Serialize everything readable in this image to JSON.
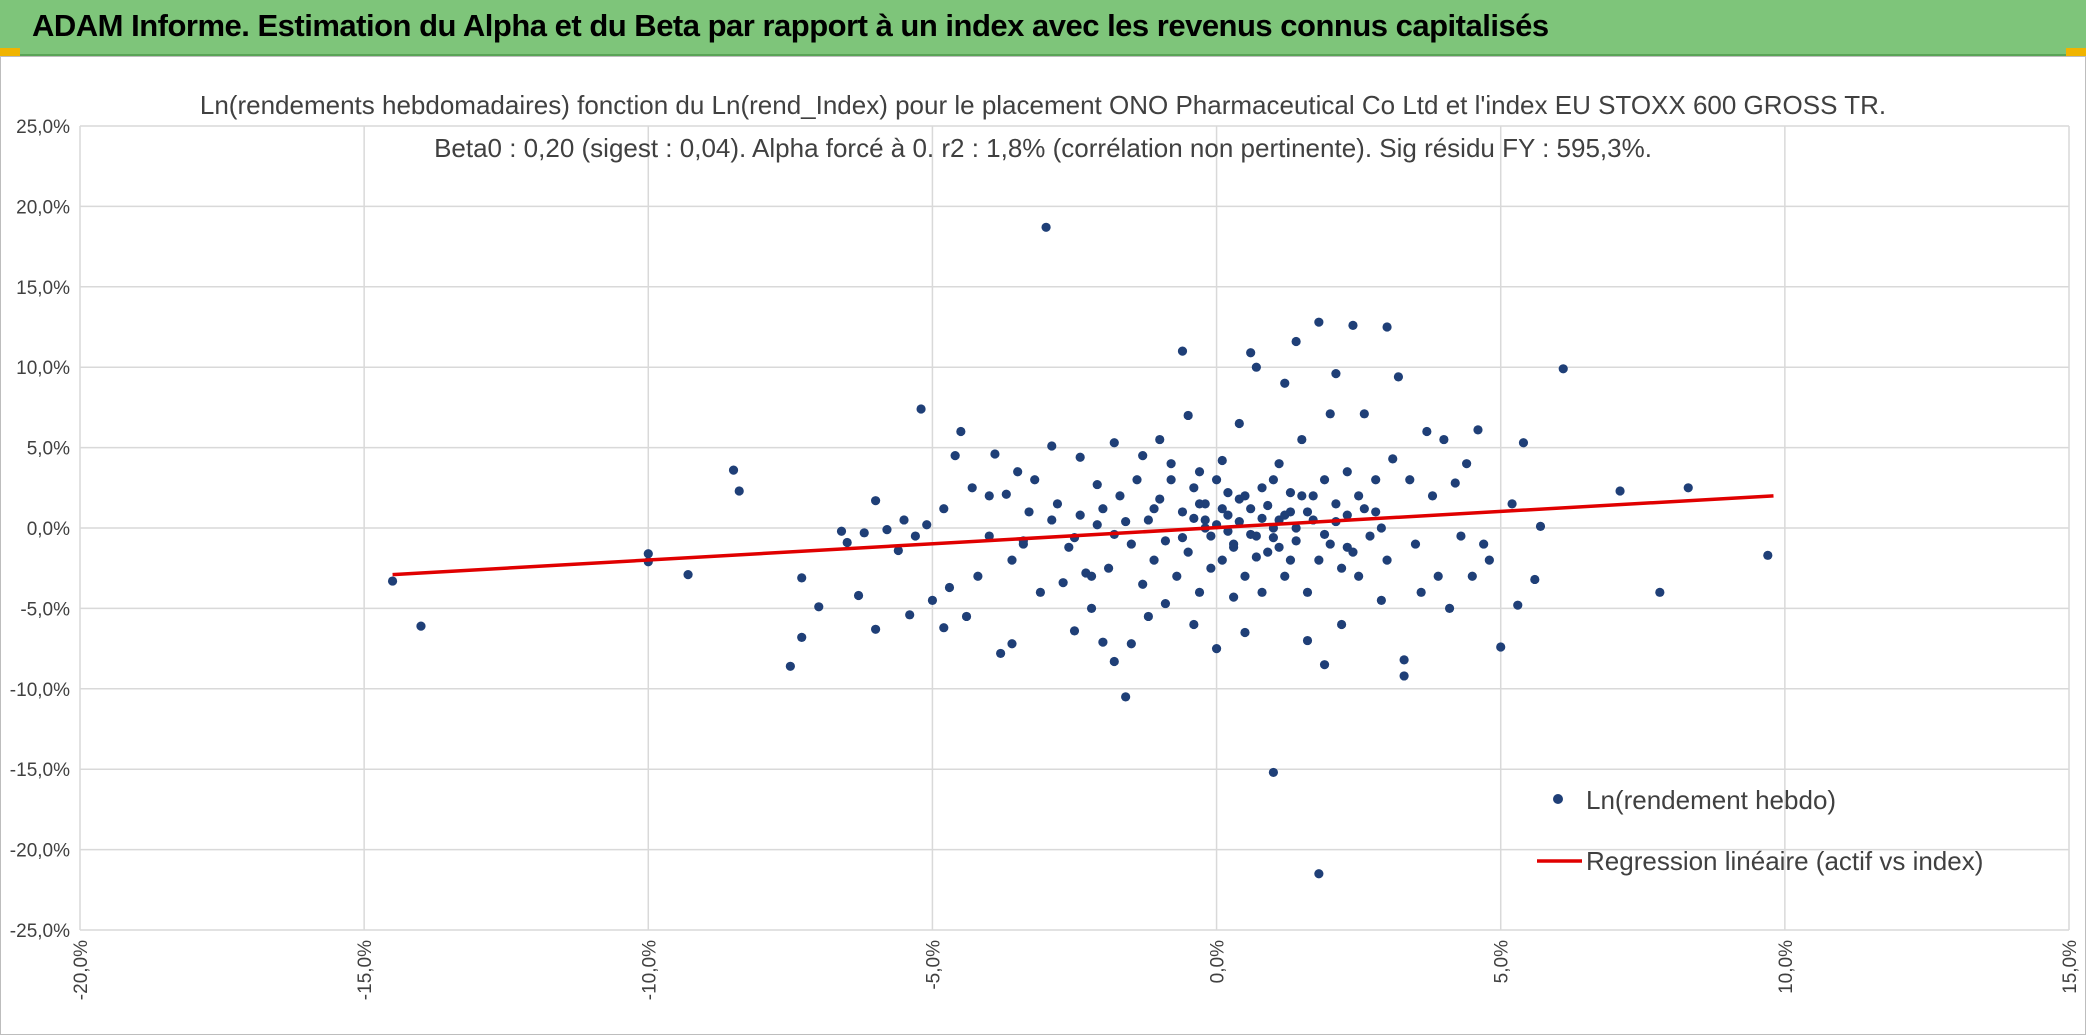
{
  "header": {
    "title": "ADAM Informe. Estimation du Alpha et du Beta par rapport à un index avec les revenus connus capitalisés"
  },
  "colors": {
    "header_bg": "#7ec57a",
    "points": "#1f3f77",
    "regression": "#e00000",
    "grid": "#d9d9d9",
    "accent": "#f0b400"
  },
  "chart_data": {
    "type": "scatter",
    "title": "Ln(rendements hebdomadaires) fonction du Ln(rend_Index) pour le placement ONO Pharmaceutical Co Ltd et l'index EU STOXX 600 GROSS TR.",
    "subtitle": "Beta0 : 0,20 (sigest : 0,04). Alpha forcé à 0. r2 : 1,8% (corrélation non pertinente). Sig résidu FY : 595,3%.",
    "xlim": [
      -0.2,
      0.15
    ],
    "ylim": [
      -0.25,
      0.25
    ],
    "x_ticks": [
      "-20,0%",
      "-15,0%",
      "-10,0%",
      "-5,0%",
      "0,0%",
      "5,0%",
      "10,0%",
      "15,0%"
    ],
    "y_ticks": [
      "25,0%",
      "20,0%",
      "15,0%",
      "10,0%",
      "5,0%",
      "0,0%",
      "-5,0%",
      "-10,0%",
      "-15,0%",
      "-20,0%",
      "-25,0%"
    ],
    "grid": true,
    "legend_position": "bottom-right",
    "series": [
      {
        "name": "Ln(rendement hebdo)",
        "kind": "scatter",
        "points": [
          [
            -0.145,
            -0.033
          ],
          [
            -0.14,
            -0.061
          ],
          [
            -0.1,
            -0.016
          ],
          [
            -0.1,
            -0.021
          ],
          [
            -0.093,
            -0.029
          ],
          [
            -0.085,
            0.036
          ],
          [
            -0.084,
            0.023
          ],
          [
            -0.075,
            -0.086
          ],
          [
            -0.073,
            -0.031
          ],
          [
            -0.073,
            -0.068
          ],
          [
            -0.07,
            -0.049
          ],
          [
            -0.066,
            -0.002
          ],
          [
            -0.065,
            -0.009
          ],
          [
            -0.063,
            -0.042
          ],
          [
            -0.062,
            -0.003
          ],
          [
            -0.06,
            -0.063
          ],
          [
            -0.06,
            0.017
          ],
          [
            -0.058,
            -0.001
          ],
          [
            -0.056,
            -0.014
          ],
          [
            -0.055,
            0.005
          ],
          [
            -0.054,
            -0.054
          ],
          [
            -0.053,
            -0.005
          ],
          [
            -0.052,
            0.074
          ],
          [
            -0.051,
            0.002
          ],
          [
            -0.05,
            -0.045
          ],
          [
            -0.048,
            -0.062
          ],
          [
            -0.047,
            -0.037
          ],
          [
            -0.046,
            0.045
          ],
          [
            -0.045,
            0.06
          ],
          [
            -0.044,
            -0.055
          ],
          [
            -0.043,
            0.025
          ],
          [
            -0.042,
            -0.03
          ],
          [
            -0.04,
            -0.005
          ],
          [
            -0.039,
            0.046
          ],
          [
            -0.038,
            -0.078
          ],
          [
            -0.037,
            0.021
          ],
          [
            -0.036,
            -0.072
          ],
          [
            -0.035,
            0.035
          ],
          [
            -0.034,
            -0.01
          ],
          [
            -0.032,
            0.03
          ],
          [
            -0.03,
            0.187
          ],
          [
            -0.029,
            0.051
          ],
          [
            -0.027,
            -0.034
          ],
          [
            -0.025,
            -0.064
          ],
          [
            -0.024,
            0.044
          ],
          [
            -0.023,
            -0.028
          ],
          [
            -0.022,
            -0.05
          ],
          [
            -0.021,
            0.027
          ],
          [
            -0.02,
            -0.071
          ],
          [
            -0.018,
            0.053
          ],
          [
            -0.018,
            -0.083
          ],
          [
            -0.016,
            -0.105
          ],
          [
            -0.015,
            -0.072
          ],
          [
            -0.013,
            0.045
          ],
          [
            -0.012,
            -0.055
          ],
          [
            -0.011,
            0.012
          ],
          [
            -0.01,
            0.055
          ],
          [
            -0.009,
            -0.047
          ],
          [
            -0.008,
            0.03
          ],
          [
            -0.006,
            0.11
          ],
          [
            -0.005,
            0.07
          ],
          [
            -0.004,
            -0.06
          ],
          [
            -0.003,
            0.035
          ],
          [
            -0.002,
            0.005
          ],
          [
            0.0,
            -0.075
          ],
          [
            0.001,
            0.042
          ],
          [
            0.002,
            0.022
          ],
          [
            0.003,
            -0.043
          ],
          [
            0.004,
            0.065
          ],
          [
            0.005,
            -0.065
          ],
          [
            0.006,
            0.109
          ],
          [
            0.007,
            0.1
          ],
          [
            0.008,
            -0.04
          ],
          [
            0.01,
            -0.152
          ],
          [
            0.01,
            0.03
          ],
          [
            0.011,
            0.005
          ],
          [
            0.012,
            0.09
          ],
          [
            0.013,
            -0.02
          ],
          [
            0.014,
            0.116
          ],
          [
            0.015,
            0.055
          ],
          [
            0.016,
            -0.07
          ],
          [
            0.017,
            0.02
          ],
          [
            0.018,
            -0.215
          ],
          [
            0.018,
            0.128
          ],
          [
            0.019,
            -0.085
          ],
          [
            0.02,
            0.071
          ],
          [
            0.021,
            0.096
          ],
          [
            0.022,
            -0.06
          ],
          [
            0.023,
            0.035
          ],
          [
            0.024,
            0.126
          ],
          [
            0.025,
            -0.03
          ],
          [
            0.026,
            0.071
          ],
          [
            0.028,
            0.01
          ],
          [
            0.029,
            -0.045
          ],
          [
            0.03,
            0.125
          ],
          [
            0.031,
            0.043
          ],
          [
            0.032,
            0.094
          ],
          [
            0.033,
            -0.082
          ],
          [
            0.033,
            -0.092
          ],
          [
            0.034,
            0.03
          ],
          [
            0.035,
            -0.01
          ],
          [
            0.036,
            -0.04
          ],
          [
            0.037,
            0.06
          ],
          [
            0.038,
            0.02
          ],
          [
            0.039,
            -0.03
          ],
          [
            0.04,
            0.055
          ],
          [
            0.041,
            -0.05
          ],
          [
            0.042,
            0.028
          ],
          [
            0.043,
            -0.005
          ],
          [
            0.044,
            0.04
          ],
          [
            0.045,
            -0.03
          ],
          [
            0.046,
            0.061
          ],
          [
            0.047,
            -0.01
          ],
          [
            0.048,
            -0.02
          ],
          [
            0.05,
            -0.074
          ],
          [
            0.052,
            0.015
          ],
          [
            0.053,
            -0.048
          ],
          [
            0.054,
            0.053
          ],
          [
            0.056,
            -0.032
          ],
          [
            0.057,
            0.001
          ],
          [
            0.061,
            0.099
          ],
          [
            0.071,
            0.023
          ],
          [
            0.078,
            -0.04
          ],
          [
            0.083,
            0.025
          ],
          [
            0.097,
            -0.017
          ],
          [
            -0.048,
            0.012
          ],
          [
            -0.04,
            0.02
          ],
          [
            -0.036,
            -0.02
          ],
          [
            -0.033,
            0.01
          ],
          [
            -0.031,
            -0.04
          ],
          [
            -0.028,
            0.015
          ],
          [
            -0.026,
            -0.012
          ],
          [
            -0.024,
            0.008
          ],
          [
            -0.022,
            -0.03
          ],
          [
            -0.02,
            0.012
          ],
          [
            -0.019,
            -0.025
          ],
          [
            -0.017,
            0.02
          ],
          [
            -0.015,
            -0.01
          ],
          [
            -0.014,
            0.03
          ],
          [
            -0.013,
            -0.035
          ],
          [
            -0.012,
            0.005
          ],
          [
            -0.011,
            -0.02
          ],
          [
            -0.01,
            0.018
          ],
          [
            -0.009,
            -0.008
          ],
          [
            -0.008,
            0.04
          ],
          [
            -0.007,
            -0.03
          ],
          [
            -0.006,
            0.01
          ],
          [
            -0.005,
            -0.015
          ],
          [
            -0.004,
            0.025
          ],
          [
            -0.003,
            -0.04
          ],
          [
            -0.002,
            0.015
          ],
          [
            -0.001,
            -0.005
          ],
          [
            0.0,
            0.03
          ],
          [
            0.001,
            -0.02
          ],
          [
            0.002,
            0.008
          ],
          [
            0.003,
            -0.012
          ],
          [
            0.004,
            0.018
          ],
          [
            0.005,
            -0.03
          ],
          [
            0.006,
            0.012
          ],
          [
            0.007,
            -0.005
          ],
          [
            0.008,
            0.025
          ],
          [
            0.009,
            -0.015
          ],
          [
            0.01,
            0.0
          ],
          [
            0.011,
            0.04
          ],
          [
            0.012,
            -0.03
          ],
          [
            0.013,
            0.01
          ],
          [
            0.014,
            -0.008
          ],
          [
            0.015,
            0.02
          ],
          [
            0.016,
            -0.04
          ],
          [
            0.017,
            0.005
          ],
          [
            0.018,
            -0.02
          ],
          [
            0.019,
            0.03
          ],
          [
            0.02,
            -0.01
          ],
          [
            0.021,
            0.015
          ],
          [
            0.022,
            -0.025
          ],
          [
            0.023,
            0.008
          ],
          [
            0.024,
            -0.015
          ],
          [
            0.025,
            0.02
          ],
          [
            0.027,
            -0.005
          ],
          [
            0.028,
            0.03
          ],
          [
            0.03,
            -0.02
          ],
          [
            -0.002,
            0.0
          ],
          [
            0.0,
            0.002
          ],
          [
            0.002,
            -0.002
          ],
          [
            0.004,
            0.004
          ],
          [
            0.006,
            -0.004
          ],
          [
            0.008,
            0.006
          ],
          [
            0.01,
            -0.006
          ],
          [
            0.012,
            0.008
          ],
          [
            -0.004,
            0.006
          ],
          [
            -0.006,
            -0.006
          ],
          [
            0.014,
            0.0
          ],
          [
            0.016,
            0.01
          ],
          [
            0.001,
            0.012
          ],
          [
            0.003,
            -0.01
          ],
          [
            0.005,
            0.02
          ],
          [
            0.007,
            -0.018
          ],
          [
            0.009,
            0.014
          ],
          [
            0.011,
            -0.012
          ],
          [
            0.013,
            0.022
          ],
          [
            -0.001,
            -0.025
          ],
          [
            -0.003,
            0.015
          ],
          [
            0.019,
            -0.004
          ],
          [
            0.021,
            0.004
          ],
          [
            0.023,
            -0.012
          ],
          [
            0.026,
            0.012
          ],
          [
            0.029,
            0.0
          ],
          [
            -0.016,
            0.004
          ],
          [
            -0.018,
            -0.004
          ],
          [
            -0.021,
            0.002
          ],
          [
            -0.025,
            -0.006
          ],
          [
            -0.029,
            0.005
          ],
          [
            -0.034,
            -0.008
          ]
        ]
      },
      {
        "name": "Regression linéaire (actif vs index)",
        "kind": "line",
        "points": [
          [
            -0.145,
            -0.029
          ],
          [
            0.098,
            0.02
          ]
        ]
      }
    ]
  }
}
